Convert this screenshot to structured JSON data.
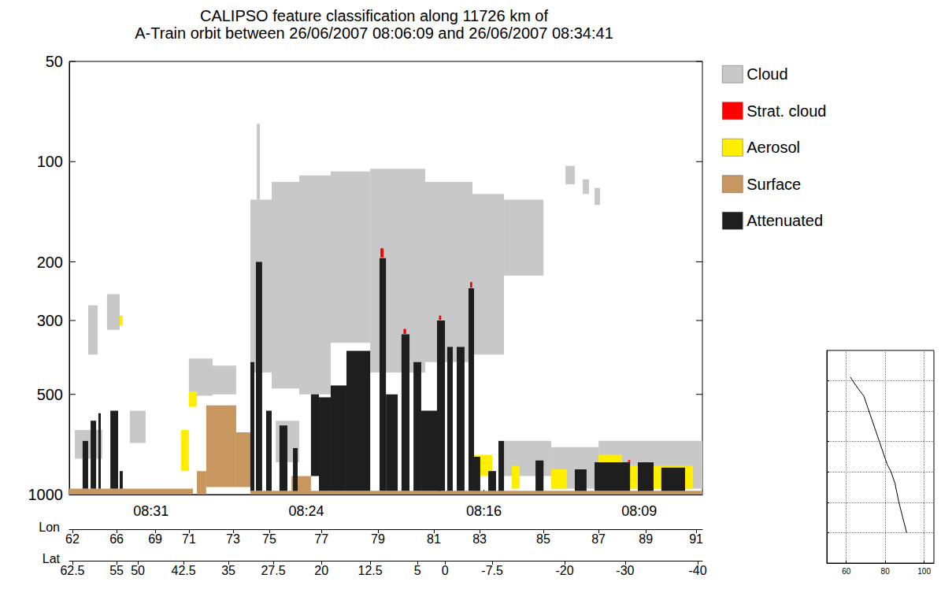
{
  "chart_data": [
    {
      "type": "curtain",
      "title": "CALIPSO feature classification along 11726 km of\nA-Train orbit between 26/06/2007 08:06:09 and 26/06/2007 08:34:41",
      "xlim": [
        34.68,
        6.15
      ],
      "xticks": [
        {
          "value": 31,
          "label": "08:31"
        },
        {
          "value": 24,
          "label": "08:24"
        },
        {
          "value": 16,
          "label": "08:16"
        },
        {
          "value": 9,
          "label": "08:09"
        }
      ],
      "lon_axis": {
        "label": "Lon",
        "ticks": [
          {
            "value": 34.54,
            "label": "62"
          },
          {
            "value": 32.55,
            "label": "66"
          },
          {
            "value": 30.81,
            "label": "69"
          },
          {
            "value": 29.29,
            "label": "71"
          },
          {
            "value": 27.3,
            "label": "73"
          },
          {
            "value": 25.67,
            "label": "75"
          },
          {
            "value": 23.32,
            "label": "77"
          },
          {
            "value": 20.77,
            "label": "79"
          },
          {
            "value": 18.25,
            "label": "81"
          },
          {
            "value": 16.19,
            "label": "83"
          },
          {
            "value": 13.32,
            "label": "85"
          },
          {
            "value": 10.83,
            "label": "87"
          },
          {
            "value": 8.7,
            "label": "89"
          },
          {
            "value": 6.43,
            "label": "91"
          }
        ]
      },
      "lat_axis": {
        "label": "Lat",
        "ticks": [
          {
            "value": 34.54,
            "label": "62.5"
          },
          {
            "value": 32.55,
            "label": "55"
          },
          {
            "value": 31.59,
            "label": "50"
          },
          {
            "value": 29.53,
            "label": "42.5"
          },
          {
            "value": 27.51,
            "label": "35"
          },
          {
            "value": 25.49,
            "label": "27.5"
          },
          {
            "value": 23.32,
            "label": "20"
          },
          {
            "value": 21.12,
            "label": "12.5"
          },
          {
            "value": 18.99,
            "label": "5"
          },
          {
            "value": 17.75,
            "label": "0"
          },
          {
            "value": 15.62,
            "label": "-7.5"
          },
          {
            "value": 12.36,
            "label": "-20"
          },
          {
            "value": 9.63,
            "label": "-30"
          },
          {
            "value": 6.36,
            "label": "-40"
          }
        ]
      },
      "ylim": [
        1000,
        50
      ],
      "yticks": [
        50,
        100,
        200,
        300,
        500,
        1000
      ],
      "log": "y",
      "grid": false,
      "legend": "right",
      "series": [
        {
          "name": "Cloud",
          "color": "#c8c8c8",
          "values": [
            [
              33.83,
              33.4,
              270,
              380
            ],
            [
              32.98,
              32.41,
              250,
              320
            ],
            [
              34.43,
              33.19,
              640,
              780
            ],
            [
              31.95,
              31.24,
              560,
              700
            ],
            [
              29.29,
              28.22,
              390,
              505
            ],
            [
              28.29,
              27.16,
              410,
              500
            ],
            [
              26.52,
              25.56,
              130,
              430
            ],
            [
              26.23,
              26.09,
              77,
              130
            ],
            [
              25.56,
              24.32,
              115,
              480
            ],
            [
              24.32,
              22.9,
              110,
              500
            ],
            [
              22.9,
              21.12,
              107,
              350
            ],
            [
              21.12,
              18.64,
              105,
              430
            ],
            [
              18.64,
              16.51,
              115,
              400
            ],
            [
              16.51,
              15.09,
              125,
              380
            ],
            [
              15.09,
              13.31,
              130,
              220
            ],
            [
              12.32,
              11.9,
              103,
              117
            ],
            [
              11.54,
              11.26,
              113,
              125
            ],
            [
              11.01,
              10.76,
              120,
              135
            ],
            [
              25.38,
              24.32,
              600,
              800
            ],
            [
              15.09,
              12.96,
              690,
              880
            ],
            [
              12.96,
              10.83,
              720,
              960
            ],
            [
              10.83,
              6.15,
              690,
              960
            ]
          ]
        },
        {
          "name": "Strat. cloud",
          "color": "#ff0000",
          "values": [
            [
              20.66,
              20.52,
              182,
              194
            ],
            [
              19.62,
              19.5,
              318,
              329
            ],
            [
              18.02,
              17.92,
              290,
              299
            ],
            [
              16.62,
              16.52,
              230,
              239
            ],
            [
              9.5,
              9.4,
              788,
              799
            ]
          ]
        },
        {
          "name": "Aerosol",
          "color": "#ffee00",
          "values": [
            [
              32.41,
              32.27,
              290,
              310
            ],
            [
              29.64,
              29.29,
              640,
              850
            ],
            [
              29.29,
              28.93,
              490,
              545
            ],
            [
              16.51,
              15.62,
              760,
              880
            ],
            [
              14.74,
              14.38,
              820,
              960
            ],
            [
              12.96,
              12.25,
              840,
              960
            ],
            [
              10.83,
              9.77,
              760,
              960
            ],
            [
              9.77,
              6.57,
              820,
              960
            ]
          ]
        },
        {
          "name": "Surface",
          "color": "#c8965f",
          "values": [
            [
              34.68,
              29.11,
              960,
              1000
            ],
            [
              28.93,
              28.51,
              850,
              1000
            ],
            [
              28.51,
              27.16,
              540,
              950
            ],
            [
              27.16,
              26.52,
              650,
              950
            ],
            [
              26.52,
              6.15,
              975,
              1000
            ],
            [
              24.67,
              23.79,
              880,
              1000
            ]
          ]
        },
        {
          "name": "Attenuated",
          "color": "#1e1e1e",
          "values": [
            [
              34.08,
              33.83,
              690,
              960
            ],
            [
              33.72,
              33.47,
              600,
              960
            ],
            [
              33.37,
              33.26,
              570,
              960
            ],
            [
              32.83,
              32.48,
              560,
              960
            ],
            [
              32.41,
              32.27,
              850,
              960
            ],
            [
              26.52,
              26.34,
              400,
              975
            ],
            [
              26.27,
              25.99,
              200,
              975
            ],
            [
              25.81,
              25.56,
              560,
              975
            ],
            [
              25.21,
              24.85,
              620,
              975
            ],
            [
              24.6,
              24.39,
              725,
              975
            ],
            [
              23.79,
              23.43,
              500,
              880
            ],
            [
              23.43,
              22.9,
              510,
              975
            ],
            [
              22.9,
              22.19,
              470,
              975
            ],
            [
              22.19,
              21.12,
              370,
              975
            ],
            [
              20.7,
              20.41,
              195,
              975
            ],
            [
              20.41,
              19.88,
              500,
              975
            ],
            [
              19.71,
              19.35,
              330,
              975
            ],
            [
              19.17,
              18.82,
              400,
              975
            ],
            [
              18.82,
              17.93,
              560,
              975
            ],
            [
              18.11,
              17.75,
              300,
              975
            ],
            [
              17.65,
              17.4,
              360,
              975
            ],
            [
              17.22,
              16.87,
              360,
              975
            ],
            [
              16.69,
              16.44,
              240,
              975
            ],
            [
              16.44,
              16.16,
              770,
              975
            ],
            [
              15.8,
              15.45,
              850,
              975
            ],
            [
              15.34,
              15.09,
              690,
              975
            ],
            [
              13.67,
              13.31,
              790,
              975
            ],
            [
              11.9,
              11.37,
              840,
              975
            ],
            [
              11.01,
              9.41,
              800,
              975
            ],
            [
              9.06,
              8.35,
              800,
              975
            ],
            [
              8.0,
              6.93,
              830,
              975
            ]
          ]
        }
      ]
    },
    {
      "type": "line",
      "xlim": [
        50,
        105
      ],
      "xticks": [
        60,
        80,
        100
      ],
      "ylim": [
        -60,
        80
      ],
      "yticks": [
        -40,
        -20,
        0,
        20,
        40,
        60
      ],
      "grid": true,
      "tick_labels": "x",
      "series": [
        {
          "color": "#000000",
          "x": [
            62,
            66,
            69,
            71,
            73,
            75,
            77,
            79,
            81,
            83,
            85,
            87,
            89,
            91
          ],
          "values": [
            62.5,
            55,
            50,
            42.5,
            35,
            27.5,
            20,
            12.5,
            5,
            0,
            -7.5,
            -20,
            -30,
            -40
          ]
        }
      ]
    }
  ]
}
